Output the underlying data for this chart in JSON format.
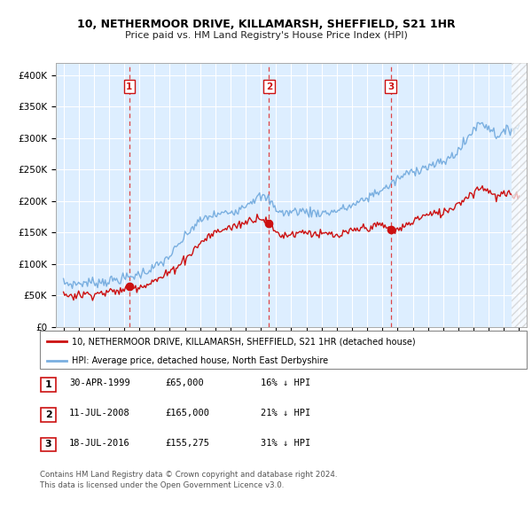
{
  "title": "10, NETHERMOOR DRIVE, KILLAMARSH, SHEFFIELD, S21 1HR",
  "subtitle": "Price paid vs. HM Land Registry's House Price Index (HPI)",
  "hpi_color": "#7aafe0",
  "price_color": "#cc1111",
  "vline_color": "#dd3333",
  "background_color": "#ddeeff",
  "grid_color": "#ffffff",
  "ylim": [
    0,
    420000
  ],
  "yticks": [
    0,
    50000,
    100000,
    150000,
    200000,
    250000,
    300000,
    350000,
    400000
  ],
  "ytick_labels": [
    "£0",
    "£50K",
    "£100K",
    "£150K",
    "£200K",
    "£250K",
    "£300K",
    "£350K",
    "£400K"
  ],
  "sale_dates": [
    1999.33,
    2008.53,
    2016.54
  ],
  "sale_prices": [
    65000,
    165000,
    155275
  ],
  "sale_labels": [
    "1",
    "2",
    "3"
  ],
  "legend_price_label": "10, NETHERMOOR DRIVE, KILLAMARSH, SHEFFIELD, S21 1HR (detached house)",
  "legend_hpi_label": "HPI: Average price, detached house, North East Derbyshire",
  "table_rows": [
    {
      "num": "1",
      "date": "30-APR-1999",
      "price": "£65,000",
      "hpi": "16% ↓ HPI"
    },
    {
      "num": "2",
      "date": "11-JUL-2008",
      "price": "£165,000",
      "hpi": "21% ↓ HPI"
    },
    {
      "num": "3",
      "date": "18-JUL-2016",
      "price": "£155,275",
      "hpi": "31% ↓ HPI"
    }
  ],
  "footnote": "Contains HM Land Registry data © Crown copyright and database right 2024.\nThis data is licensed under the Open Government Licence v3.0.",
  "xlim": [
    1994.5,
    2025.5
  ],
  "hpi_curve_points": [
    [
      1995.0,
      70000
    ],
    [
      1995.5,
      68000
    ],
    [
      1996.0,
      69000
    ],
    [
      1996.5,
      70500
    ],
    [
      1997.0,
      71000
    ],
    [
      1997.5,
      72000
    ],
    [
      1998.0,
      73000
    ],
    [
      1998.5,
      75000
    ],
    [
      1999.0,
      77000
    ],
    [
      1999.5,
      80000
    ],
    [
      2000.0,
      84000
    ],
    [
      2000.5,
      89000
    ],
    [
      2001.0,
      95000
    ],
    [
      2001.5,
      102000
    ],
    [
      2002.0,
      113000
    ],
    [
      2002.5,
      127000
    ],
    [
      2003.0,
      143000
    ],
    [
      2003.5,
      158000
    ],
    [
      2004.0,
      168000
    ],
    [
      2004.5,
      175000
    ],
    [
      2005.0,
      178000
    ],
    [
      2005.5,
      180000
    ],
    [
      2006.0,
      183000
    ],
    [
      2006.5,
      187000
    ],
    [
      2007.0,
      195000
    ],
    [
      2007.5,
      203000
    ],
    [
      2008.0,
      207000
    ],
    [
      2008.5,
      203000
    ],
    [
      2009.0,
      188000
    ],
    [
      2009.5,
      180000
    ],
    [
      2010.0,
      183000
    ],
    [
      2010.5,
      185000
    ],
    [
      2011.0,
      183000
    ],
    [
      2011.5,
      182000
    ],
    [
      2012.0,
      181000
    ],
    [
      2012.5,
      182000
    ],
    [
      2013.0,
      185000
    ],
    [
      2013.5,
      188000
    ],
    [
      2014.0,
      193000
    ],
    [
      2014.5,
      198000
    ],
    [
      2015.0,
      205000
    ],
    [
      2015.5,
      213000
    ],
    [
      2016.0,
      218000
    ],
    [
      2016.5,
      225000
    ],
    [
      2017.0,
      235000
    ],
    [
      2017.5,
      242000
    ],
    [
      2018.0,
      248000
    ],
    [
      2018.5,
      252000
    ],
    [
      2019.0,
      255000
    ],
    [
      2019.5,
      258000
    ],
    [
      2020.0,
      262000
    ],
    [
      2020.5,
      270000
    ],
    [
      2021.0,
      280000
    ],
    [
      2021.5,
      295000
    ],
    [
      2022.0,
      315000
    ],
    [
      2022.5,
      325000
    ],
    [
      2023.0,
      318000
    ],
    [
      2023.5,
      305000
    ],
    [
      2024.0,
      308000
    ],
    [
      2024.5,
      315000
    ],
    [
      2025.0,
      318000
    ]
  ],
  "price_curve_points": [
    [
      1995.0,
      52000
    ],
    [
      1995.5,
      50000
    ],
    [
      1996.0,
      51000
    ],
    [
      1996.5,
      52000
    ],
    [
      1997.0,
      53000
    ],
    [
      1997.5,
      54000
    ],
    [
      1998.0,
      55000
    ],
    [
      1998.5,
      57000
    ],
    [
      1999.0,
      58000
    ],
    [
      1999.33,
      65000
    ],
    [
      1999.5,
      63000
    ],
    [
      2000.0,
      65000
    ],
    [
      2000.5,
      68000
    ],
    [
      2001.0,
      73000
    ],
    [
      2001.5,
      79000
    ],
    [
      2002.0,
      87000
    ],
    [
      2002.5,
      97000
    ],
    [
      2003.0,
      108000
    ],
    [
      2003.5,
      120000
    ],
    [
      2004.0,
      133000
    ],
    [
      2004.5,
      143000
    ],
    [
      2005.0,
      150000
    ],
    [
      2005.5,
      155000
    ],
    [
      2006.0,
      158000
    ],
    [
      2006.5,
      162000
    ],
    [
      2007.0,
      167000
    ],
    [
      2007.5,
      172000
    ],
    [
      2008.0,
      175000
    ],
    [
      2008.53,
      165000
    ],
    [
      2008.7,
      158000
    ],
    [
      2009.0,
      150000
    ],
    [
      2009.5,
      145000
    ],
    [
      2010.0,
      148000
    ],
    [
      2010.5,
      150000
    ],
    [
      2011.0,
      152000
    ],
    [
      2011.5,
      148000
    ],
    [
      2012.0,
      146000
    ],
    [
      2012.5,
      148000
    ],
    [
      2013.0,
      143000
    ],
    [
      2013.5,
      148000
    ],
    [
      2014.0,
      152000
    ],
    [
      2014.5,
      156000
    ],
    [
      2015.0,
      158000
    ],
    [
      2015.5,
      160000
    ],
    [
      2016.0,
      162000
    ],
    [
      2016.54,
      155275
    ],
    [
      2016.8,
      153000
    ],
    [
      2017.0,
      155000
    ],
    [
      2017.5,
      160000
    ],
    [
      2018.0,
      168000
    ],
    [
      2018.5,
      175000
    ],
    [
      2019.0,
      178000
    ],
    [
      2019.5,
      180000
    ],
    [
      2020.0,
      182000
    ],
    [
      2020.5,
      188000
    ],
    [
      2021.0,
      197000
    ],
    [
      2021.5,
      205000
    ],
    [
      2022.0,
      215000
    ],
    [
      2022.5,
      222000
    ],
    [
      2023.0,
      218000
    ],
    [
      2023.5,
      205000
    ],
    [
      2024.0,
      212000
    ],
    [
      2024.5,
      208000
    ],
    [
      2025.0,
      210000
    ]
  ]
}
